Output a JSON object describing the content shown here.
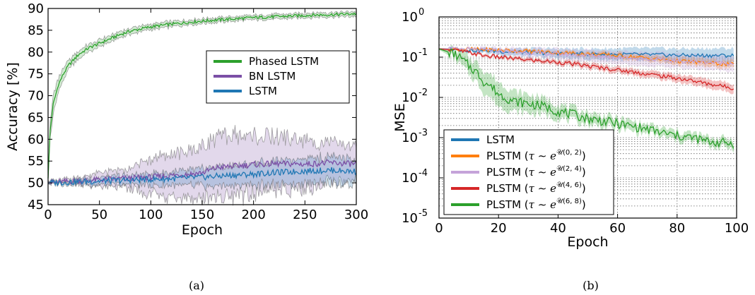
{
  "chart_data": [
    {
      "type": "line",
      "panel_label": "(a)",
      "xlabel": "Epoch",
      "ylabel": "Accuracy [%]",
      "xlim": [
        0,
        300
      ],
      "ylim": [
        45,
        90
      ],
      "xticks": [
        "0",
        "50",
        "100",
        "150",
        "200",
        "250",
        "300"
      ],
      "yticks": [
        "45",
        "50",
        "55",
        "60",
        "65",
        "70",
        "75",
        "80",
        "85",
        "90"
      ],
      "legend_position": "center-right",
      "legend": [
        "Phased LSTM",
        "BN LSTM",
        "LSTM"
      ],
      "shaded_band": true,
      "series": [
        {
          "name": "Phased LSTM",
          "color": "#2ca02c",
          "x": [
            0,
            2,
            5,
            10,
            15,
            20,
            30,
            40,
            50,
            60,
            70,
            80,
            90,
            100,
            120,
            140,
            160,
            180,
            200,
            220,
            240,
            260,
            280,
            300
          ],
          "y": [
            51,
            62,
            68,
            72.5,
            75,
            77,
            79.5,
            81,
            82,
            83,
            84,
            84.8,
            85.3,
            85.8,
            86.4,
            86.9,
            87.3,
            87.6,
            87.9,
            88.1,
            88.3,
            88.5,
            88.6,
            88.8
          ],
          "band": [
            0.3,
            1.8,
            2,
            1.5,
            1.2,
            1,
            0.9,
            0.8,
            0.8,
            0.7,
            0.7,
            0.7,
            0.6,
            0.6,
            0.6,
            0.5,
            0.5,
            0.5,
            0.5,
            0.5,
            0.5,
            0.5,
            0.5,
            0.5
          ]
        },
        {
          "name": "BN LSTM",
          "color": "#7b4fa6",
          "x": [
            0,
            25,
            50,
            75,
            100,
            125,
            150,
            165,
            180,
            200,
            225,
            250,
            275,
            300
          ],
          "y": [
            50,
            50.4,
            50.7,
            51,
            51.3,
            51.8,
            52.3,
            53.5,
            53.8,
            54.2,
            54.4,
            54.3,
            54.6,
            54.3
          ],
          "band": [
            0.3,
            0.6,
            1.5,
            2,
            4,
            5,
            6,
            7,
            7,
            6.5,
            6,
            5.5,
            4.5,
            4
          ]
        },
        {
          "name": "LSTM",
          "color": "#1f77b4",
          "x": [
            0,
            25,
            50,
            75,
            100,
            125,
            150,
            175,
            200,
            225,
            250,
            275,
            300
          ],
          "y": [
            50,
            50.2,
            50.4,
            50.6,
            50.8,
            51,
            51.3,
            51.7,
            52,
            52.4,
            52.7,
            52.9,
            52.6
          ],
          "band": [
            0.3,
            0.5,
            0.8,
            1,
            1.3,
            1.5,
            2,
            2.2,
            2.5,
            2.6,
            2.8,
            3,
            2.8
          ]
        }
      ]
    },
    {
      "type": "line",
      "panel_label": "(b)",
      "xlabel": "Epoch",
      "ylabel": "MSE",
      "xlim": [
        0,
        100
      ],
      "ylim": [
        1e-05,
        1
      ],
      "yscale": "log",
      "grid": true,
      "xticks": [
        "0",
        "20",
        "40",
        "60",
        "80",
        "100"
      ],
      "yticks": [
        {
          "base": "10",
          "exp": "-5"
        },
        {
          "base": "10",
          "exp": "-4"
        },
        {
          "base": "10",
          "exp": "-3"
        },
        {
          "base": "10",
          "exp": "-2"
        },
        {
          "base": "10",
          "exp": "-1"
        },
        {
          "base": "10",
          "exp": "0"
        }
      ],
      "legend_position": "lower-left",
      "legend": [
        {
          "label": "LSTM",
          "color": "#1f77b4"
        },
        {
          "label": "PLSTM",
          "range": "(0, 2)",
          "color": "#ff7f0e"
        },
        {
          "label": "PLSTM",
          "range": "(2, 4)",
          "color": "#c5a3d9"
        },
        {
          "label": "PLSTM",
          "range": "(4, 6)",
          "color": "#d62728"
        },
        {
          "label": "PLSTM",
          "range": "(6, 8)",
          "color": "#2ca02c"
        }
      ],
      "legend_math": {
        "tau": "τ",
        "sim": "∼",
        "e": "e",
        "U": "𝒰",
        "open": "(",
        "close": ")"
      },
      "series": [
        {
          "name": "LSTM",
          "color": "#1f77b4",
          "x": [
            0,
            5,
            10,
            20,
            30,
            40,
            50,
            60,
            70,
            80,
            90,
            99
          ],
          "y": [
            0.16,
            0.16,
            0.15,
            0.14,
            0.13,
            0.125,
            0.12,
            0.118,
            0.115,
            0.112,
            0.11,
            0.11
          ],
          "band": [
            1.05,
            1.05,
            1.1,
            1.2,
            1.25,
            1.3,
            1.35,
            1.4,
            1.45,
            1.45,
            1.5,
            1.5
          ]
        },
        {
          "name": "PLSTM (0, 2)",
          "color": "#ff7f0e",
          "x": [
            0,
            5,
            10,
            20,
            30,
            40,
            50,
            60,
            70,
            80,
            90,
            99
          ],
          "y": [
            0.16,
            0.16,
            0.158,
            0.15,
            0.14,
            0.13,
            0.12,
            0.11,
            0.095,
            0.08,
            0.072,
            0.065
          ],
          "band": [
            1.03,
            1.03,
            1.05,
            1.08,
            1.1,
            1.12,
            1.15,
            1.18,
            1.2,
            1.22,
            1.25,
            1.25
          ]
        },
        {
          "name": "PLSTM (2, 4)",
          "color": "#c5a3d9",
          "x": [
            0,
            5,
            10,
            20,
            30,
            40,
            50,
            60,
            70,
            80,
            90,
            99
          ],
          "y": [
            0.16,
            0.16,
            0.155,
            0.145,
            0.13,
            0.12,
            0.11,
            0.1,
            0.09,
            0.08,
            0.075,
            0.07
          ],
          "band": [
            1.05,
            1.05,
            1.1,
            1.2,
            1.3,
            1.35,
            1.4,
            1.45,
            1.5,
            1.5,
            1.55,
            1.55
          ]
        },
        {
          "name": "PLSTM (4, 6)",
          "color": "#d62728",
          "x": [
            0,
            5,
            10,
            15,
            20,
            30,
            40,
            50,
            60,
            70,
            80,
            90,
            99
          ],
          "y": [
            0.16,
            0.15,
            0.13,
            0.11,
            0.1,
            0.085,
            0.075,
            0.06,
            0.048,
            0.038,
            0.03,
            0.022,
            0.017
          ],
          "band": [
            1.05,
            1.05,
            1.08,
            1.1,
            1.1,
            1.12,
            1.15,
            1.18,
            1.2,
            1.22,
            1.25,
            1.3,
            1.3
          ]
        },
        {
          "name": "PLSTM (6, 8)",
          "color": "#2ca02c",
          "x": [
            0,
            5,
            10,
            15,
            20,
            25,
            30,
            35,
            40,
            45,
            50,
            55,
            60,
            65,
            70,
            75,
            80,
            85,
            90,
            95,
            99
          ],
          "y": [
            0.16,
            0.12,
            0.06,
            0.025,
            0.012,
            0.008,
            0.007,
            0.006,
            0.0045,
            0.0037,
            0.003,
            0.0026,
            0.0022,
            0.0019,
            0.0016,
            0.0013,
            0.0011,
            0.001,
            0.0008,
            0.00075,
            0.0007
          ],
          "band": [
            1.05,
            1.3,
            1.6,
            1.9,
            2.0,
            1.8,
            1.7,
            1.6,
            1.5,
            1.45,
            1.4,
            1.4,
            1.35,
            1.35,
            1.3,
            1.3,
            1.3,
            1.3,
            1.3,
            1.3,
            1.3
          ]
        }
      ]
    }
  ]
}
